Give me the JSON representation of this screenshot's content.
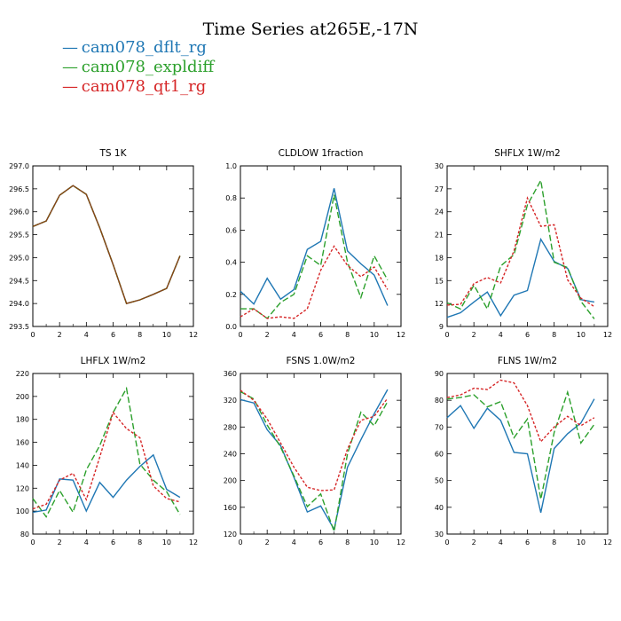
{
  "title": "Time Series at265E,-17N",
  "legend": [
    {
      "symbol": "—",
      "label": "cam078_dflt_rg",
      "color": "#1f77b4"
    },
    {
      "symbol": "—",
      "label": "cam078_expldiff",
      "color": "#2ca02c"
    },
    {
      "symbol": "—",
      "label": "cam078_qt1_rg",
      "color": "#d62728"
    }
  ],
  "chart_data": [
    {
      "type": "line",
      "title": "TS   1K",
      "xlim": [
        0,
        12
      ],
      "xticks": [
        0,
        2,
        4,
        6,
        8,
        10,
        12
      ],
      "ylim": [
        293.5,
        297.0
      ],
      "yticks": [
        "293.5",
        "294.0",
        "294.5",
        "295.0",
        "295.5",
        "296.0",
        "296.5",
        "297.0"
      ],
      "x": [
        0,
        1,
        2,
        3,
        4,
        5,
        6,
        7,
        8,
        9,
        10,
        11
      ],
      "series": [
        {
          "name": "cam078_dflt_rg",
          "color": "#1f77b4",
          "dash": "",
          "values": [
            295.68,
            295.8,
            296.36,
            296.57,
            296.38,
            295.65,
            294.85,
            294.0,
            294.08,
            294.2,
            294.33,
            295.04
          ]
        },
        {
          "name": "cam078_expldiff",
          "color": "#2ca02c",
          "dash": "7,3",
          "values": [
            295.68,
            295.8,
            296.36,
            296.57,
            296.38,
            295.65,
            294.85,
            294.0,
            294.08,
            294.2,
            294.33,
            295.04
          ]
        },
        {
          "name": "cam078_qt1_rg",
          "color": "#8b4513",
          "dash": "",
          "values": [
            295.68,
            295.8,
            296.36,
            296.57,
            296.38,
            295.65,
            294.85,
            294.0,
            294.08,
            294.2,
            294.33,
            295.04
          ]
        }
      ]
    },
    {
      "type": "line",
      "title": "CLDLOW   1fraction",
      "xlim": [
        0,
        12
      ],
      "xticks": [
        0,
        2,
        4,
        6,
        8,
        10,
        12
      ],
      "ylim": [
        0.0,
        1.0
      ],
      "yticks": [
        "0.0",
        "0.2",
        "0.4",
        "0.6",
        "0.8",
        "1.0"
      ],
      "x": [
        0,
        1,
        2,
        3,
        4,
        5,
        6,
        7,
        8,
        9,
        10,
        11
      ],
      "series": [
        {
          "name": "cam078_dflt_rg",
          "color": "#1f77b4",
          "dash": "",
          "values": [
            0.22,
            0.14,
            0.3,
            0.17,
            0.23,
            0.48,
            0.53,
            0.86,
            0.47,
            0.39,
            0.32,
            0.13
          ]
        },
        {
          "name": "cam078_expldiff",
          "color": "#2ca02c",
          "dash": "7,3",
          "values": [
            0.11,
            0.11,
            0.05,
            0.15,
            0.2,
            0.44,
            0.38,
            0.82,
            0.4,
            0.18,
            0.44,
            0.29
          ]
        },
        {
          "name": "cam078_qt1_rg",
          "color": "#d62728",
          "dash": "3,2",
          "values": [
            0.06,
            0.11,
            0.05,
            0.06,
            0.05,
            0.11,
            0.35,
            0.5,
            0.38,
            0.31,
            0.37,
            0.23
          ]
        }
      ]
    },
    {
      "type": "line",
      "title": "SHFLX   1W/m2",
      "xlim": [
        0,
        12
      ],
      "xticks": [
        0,
        2,
        4,
        6,
        8,
        10,
        12
      ],
      "ylim": [
        9,
        30
      ],
      "yticks": [
        "9",
        "12",
        "15",
        "18",
        "21",
        "24",
        "27",
        "30"
      ],
      "x": [
        0,
        1,
        2,
        3,
        4,
        5,
        6,
        7,
        8,
        9,
        10,
        11
      ],
      "series": [
        {
          "name": "cam078_dflt_rg",
          "color": "#1f77b4",
          "dash": "",
          "values": [
            10.2,
            10.8,
            12.2,
            13.5,
            10.4,
            13.1,
            13.7,
            20.4,
            17.5,
            16.6,
            12.5,
            12.2
          ]
        },
        {
          "name": "cam078_expldiff",
          "color": "#2ca02c",
          "dash": "7,3",
          "values": [
            12.1,
            11.3,
            14.4,
            11.3,
            16.9,
            18.4,
            24.9,
            28.1,
            17.4,
            16.7,
            12.3,
            10.0
          ]
        },
        {
          "name": "cam078_qt1_rg",
          "color": "#d62728",
          "dash": "3,2",
          "values": [
            11.8,
            11.9,
            14.6,
            15.4,
            14.7,
            18.9,
            25.8,
            22.1,
            22.3,
            15.1,
            12.7,
            11.6
          ]
        }
      ]
    },
    {
      "type": "line",
      "title": "LHFLX   1W/m2",
      "xlim": [
        0,
        12
      ],
      "xticks": [
        0,
        2,
        4,
        6,
        8,
        10,
        12
      ],
      "ylim": [
        80,
        220
      ],
      "yticks": [
        "80",
        "100",
        "120",
        "140",
        "160",
        "180",
        "200",
        "220"
      ],
      "x": [
        0,
        1,
        2,
        3,
        4,
        5,
        6,
        7,
        8,
        9,
        10,
        11
      ],
      "series": [
        {
          "name": "cam078_dflt_rg",
          "color": "#1f77b4",
          "dash": "",
          "values": [
            99,
            101,
            128,
            127,
            100,
            125,
            112,
            127,
            139,
            149,
            119,
            112
          ]
        },
        {
          "name": "cam078_expldiff",
          "color": "#2ca02c",
          "dash": "7,3",
          "values": [
            111,
            95,
            118,
            99,
            136,
            157,
            186,
            207,
            141,
            127,
            117,
            97
          ]
        },
        {
          "name": "cam078_qt1_rg",
          "color": "#d62728",
          "dash": "3,2",
          "values": [
            102,
            106,
            127,
            133,
            110,
            147,
            186,
            172,
            164,
            122,
            111,
            108
          ]
        }
      ]
    },
    {
      "type": "line",
      "title": "FSNS   1.0W/m2",
      "xlim": [
        0,
        12
      ],
      "xticks": [
        0,
        2,
        4,
        6,
        8,
        10,
        12
      ],
      "ylim": [
        120,
        360
      ],
      "yticks": [
        "120",
        "160",
        "200",
        "240",
        "280",
        "320",
        "360"
      ],
      "x": [
        0,
        1,
        2,
        3,
        4,
        5,
        6,
        7,
        8,
        9,
        10,
        11
      ],
      "series": [
        {
          "name": "cam078_dflt_rg",
          "color": "#1f77b4",
          "dash": "",
          "values": [
            321,
            316,
            276,
            252,
            205,
            153,
            162,
            127,
            220,
            261,
            300,
            336
          ]
        },
        {
          "name": "cam078_expldiff",
          "color": "#2ca02c",
          "dash": "7,3",
          "values": [
            333,
            322,
            283,
            250,
            207,
            161,
            180,
            124,
            240,
            302,
            282,
            318
          ]
        },
        {
          "name": "cam078_qt1_rg",
          "color": "#d62728",
          "dash": "3,2",
          "values": [
            335,
            320,
            292,
            256,
            220,
            190,
            185,
            186,
            247,
            290,
            296,
            323
          ]
        }
      ]
    },
    {
      "type": "line",
      "title": "FLNS   1W/m2",
      "xlim": [
        0,
        12
      ],
      "xticks": [
        0,
        2,
        4,
        6,
        8,
        10,
        12
      ],
      "ylim": [
        30,
        90
      ],
      "yticks": [
        "30",
        "40",
        "50",
        "60",
        "70",
        "80",
        "90"
      ],
      "x": [
        0,
        1,
        2,
        3,
        4,
        5,
        6,
        7,
        8,
        9,
        10,
        11
      ],
      "series": [
        {
          "name": "cam078_dflt_rg",
          "color": "#1f77b4",
          "dash": "",
          "values": [
            73.5,
            78.0,
            69.5,
            77.0,
            72.5,
            60.5,
            60.0,
            38.0,
            62.0,
            67.5,
            71.5,
            80.5
          ]
        },
        {
          "name": "cam078_expldiff",
          "color": "#2ca02c",
          "dash": "7,3",
          "values": [
            80.5,
            81.0,
            82.0,
            77.5,
            79.5,
            66.0,
            73.0,
            43.0,
            68.0,
            83.0,
            64.0,
            71.0
          ]
        },
        {
          "name": "cam078_qt1_rg",
          "color": "#d62728",
          "dash": "3,2",
          "values": [
            81.0,
            82.0,
            84.5,
            84.0,
            87.5,
            86.5,
            78.0,
            64.5,
            70.0,
            74.0,
            70.5,
            73.5
          ]
        }
      ]
    }
  ]
}
